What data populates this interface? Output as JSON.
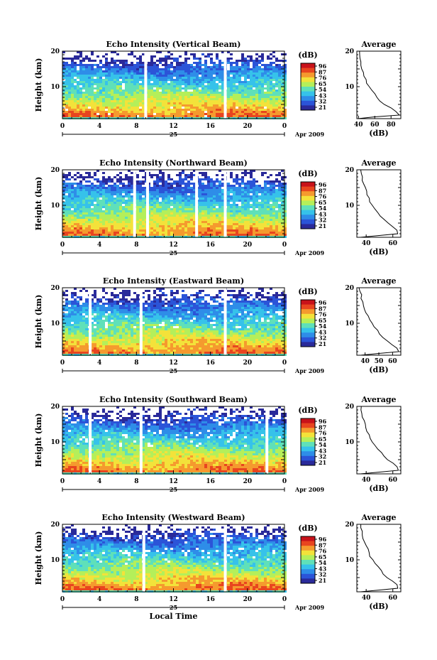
{
  "chart_data": [
    {
      "type": "heatmap",
      "title": "Echo Intensity (Vertical Beam)",
      "ylabel": "Height (km)",
      "y_ticks": [
        "10",
        "20"
      ],
      "ylim": [
        1,
        20
      ],
      "x_ticks": [
        "0",
        "4",
        "8",
        "12",
        "16",
        "20",
        "0"
      ],
      "xlim": [
        0,
        24
      ],
      "date_day": "25",
      "date_label": "Apr 2009",
      "colorbar_unit": "(dB)",
      "colorbar_ticks": [
        "96",
        "87",
        "76",
        "65",
        "54",
        "43",
        "32",
        "21"
      ],
      "gaps_hours": [
        9.0,
        17.6
      ],
      "avg_title": "Average",
      "avg_xlabel": "(dB)",
      "avg_x_ticks": [
        "40",
        "60",
        "80"
      ],
      "avg_xlim": [
        38,
        92
      ],
      "avg_y_ticks": [
        "10",
        "20"
      ],
      "avg_profile": {
        "height_km": [
          1,
          1.5,
          2,
          3,
          4,
          5,
          6,
          7,
          8,
          9,
          10,
          11,
          12,
          13,
          14,
          15,
          16,
          17,
          18,
          19,
          20
        ],
        "db": [
          40,
          60,
          90,
          86,
          80,
          72,
          66,
          63,
          60,
          57,
          53,
          50,
          49,
          47,
          46,
          44,
          43,
          43,
          42,
          41,
          41
        ]
      }
    },
    {
      "type": "heatmap",
      "title": "Echo Intensity (Northward Beam)",
      "ylabel": "Height (km)",
      "y_ticks": [
        "10",
        "20"
      ],
      "ylim": [
        1,
        20
      ],
      "x_ticks": [
        "0",
        "4",
        "8",
        "12",
        "16",
        "20",
        "0"
      ],
      "xlim": [
        0,
        24
      ],
      "date_day": "25",
      "date_label": "Apr 2009",
      "colorbar_unit": "(dB)",
      "colorbar_ticks": [
        "96",
        "87",
        "76",
        "65",
        "54",
        "43",
        "32",
        "21"
      ],
      "gaps_hours": [
        7.8,
        9.2,
        14.5,
        17.6
      ],
      "avg_title": "Average",
      "avg_xlabel": "(dB)",
      "avg_x_ticks": [
        "40",
        "60"
      ],
      "avg_xlim": [
        33,
        66
      ],
      "avg_y_ticks": [
        "10",
        "20"
      ],
      "avg_profile": {
        "height_km": [
          1,
          1.5,
          2,
          3,
          4,
          5,
          6,
          7,
          8,
          9,
          10,
          11,
          12,
          13,
          14,
          15,
          16,
          17,
          18,
          19,
          20
        ],
        "db": [
          36,
          50,
          64,
          63,
          60,
          56,
          53,
          51,
          49,
          47,
          45,
          43,
          42,
          41,
          40,
          39,
          38,
          37,
          37,
          36,
          36
        ]
      }
    },
    {
      "type": "heatmap",
      "title": "Echo Intensity (Eastward Beam)",
      "ylabel": "Height (km)",
      "y_ticks": [
        "10",
        "20"
      ],
      "ylim": [
        1,
        20
      ],
      "x_ticks": [
        "0",
        "4",
        "8",
        "12",
        "16",
        "20",
        "0"
      ],
      "xlim": [
        0,
        24
      ],
      "date_day": "25",
      "date_label": "Apr 2009",
      "colorbar_unit": "(dB)",
      "colorbar_ticks": [
        "96",
        "87",
        "76",
        "65",
        "54",
        "43",
        "32",
        "21"
      ],
      "gaps_hours": [
        3.0,
        8.5,
        17.6
      ],
      "avg_title": "Average",
      "avg_xlabel": "(dB)",
      "avg_x_ticks": [
        "40",
        "50",
        "60"
      ],
      "avg_xlim": [
        34,
        66
      ],
      "avg_y_ticks": [
        "10",
        "20"
      ],
      "avg_profile": {
        "height_km": [
          1,
          1.5,
          2,
          3,
          4,
          5,
          6,
          7,
          8,
          9,
          10,
          11,
          12,
          13,
          14,
          15,
          16,
          17,
          18,
          19,
          20
        ],
        "db": [
          37,
          50,
          64,
          63,
          60,
          56,
          53,
          51,
          49,
          47,
          45,
          43,
          42,
          41,
          40,
          39,
          38,
          37,
          37,
          36,
          36
        ]
      }
    },
    {
      "type": "heatmap",
      "title": "Echo Intensity (Southward Beam)",
      "ylabel": "Height (km)",
      "y_ticks": [
        "10",
        "20"
      ],
      "ylim": [
        1,
        20
      ],
      "x_ticks": [
        "0",
        "4",
        "8",
        "12",
        "16",
        "20",
        "0"
      ],
      "xlim": [
        0,
        24
      ],
      "date_day": "25",
      "date_label": "Apr 2009",
      "colorbar_unit": "(dB)",
      "colorbar_ticks": [
        "96",
        "87",
        "76",
        "65",
        "54",
        "43",
        "32",
        "21"
      ],
      "gaps_hours": [
        3.0,
        8.5,
        22.1
      ],
      "avg_title": "Average",
      "avg_xlabel": "(dB)",
      "avg_x_ticks": [
        "40",
        "60"
      ],
      "avg_xlim": [
        33,
        66
      ],
      "avg_y_ticks": [
        "10",
        "20"
      ],
      "avg_profile": {
        "height_km": [
          1,
          1.5,
          2,
          3,
          4,
          5,
          6,
          7,
          8,
          9,
          10,
          11,
          12,
          13,
          14,
          15,
          16,
          17,
          18,
          19,
          20
        ],
        "db": [
          36,
          50,
          64,
          63,
          60,
          56,
          53,
          51,
          49,
          47,
          45,
          43,
          42,
          41,
          40,
          39,
          38,
          37,
          37,
          36,
          36
        ]
      }
    },
    {
      "type": "heatmap",
      "title": "Echo Intensity (Westward Beam)",
      "ylabel": "Height (km)",
      "y_ticks": [
        "10",
        "20"
      ],
      "ylim": [
        1,
        20
      ],
      "x_ticks": [
        "0",
        "4",
        "8",
        "12",
        "16",
        "20",
        "0"
      ],
      "xlim": [
        0,
        24
      ],
      "date_day": "25",
      "date_label": "Apr 2009",
      "xlabel": "Local Time",
      "colorbar_unit": "(dB)",
      "colorbar_ticks": [
        "96",
        "87",
        "76",
        "65",
        "54",
        "43",
        "32",
        "21"
      ],
      "gaps_hours": [
        8.8,
        17.6
      ],
      "avg_title": "Average",
      "avg_xlabel": "(dB)",
      "avg_x_ticks": [
        "40",
        "60"
      ],
      "avg_xlim": [
        33,
        66
      ],
      "avg_y_ticks": [
        "10",
        "20"
      ],
      "avg_profile": {
        "height_km": [
          1,
          1.5,
          2,
          3,
          4,
          5,
          6,
          7,
          8,
          9,
          10,
          11,
          12,
          13,
          14,
          15,
          16,
          17,
          18,
          19,
          20
        ],
        "db": [
          36,
          50,
          64,
          63,
          60,
          56,
          53,
          51,
          49,
          47,
          45,
          43,
          42,
          41,
          40,
          39,
          38,
          37,
          37,
          36,
          36
        ]
      }
    }
  ],
  "colorscale": [
    "#2a2a9a",
    "#2b54d8",
    "#2e8de8",
    "#36c2ea",
    "#5fe0b9",
    "#b4ef5a",
    "#f3e23a",
    "#f59a2e",
    "#e8451f",
    "#c8121a"
  ]
}
